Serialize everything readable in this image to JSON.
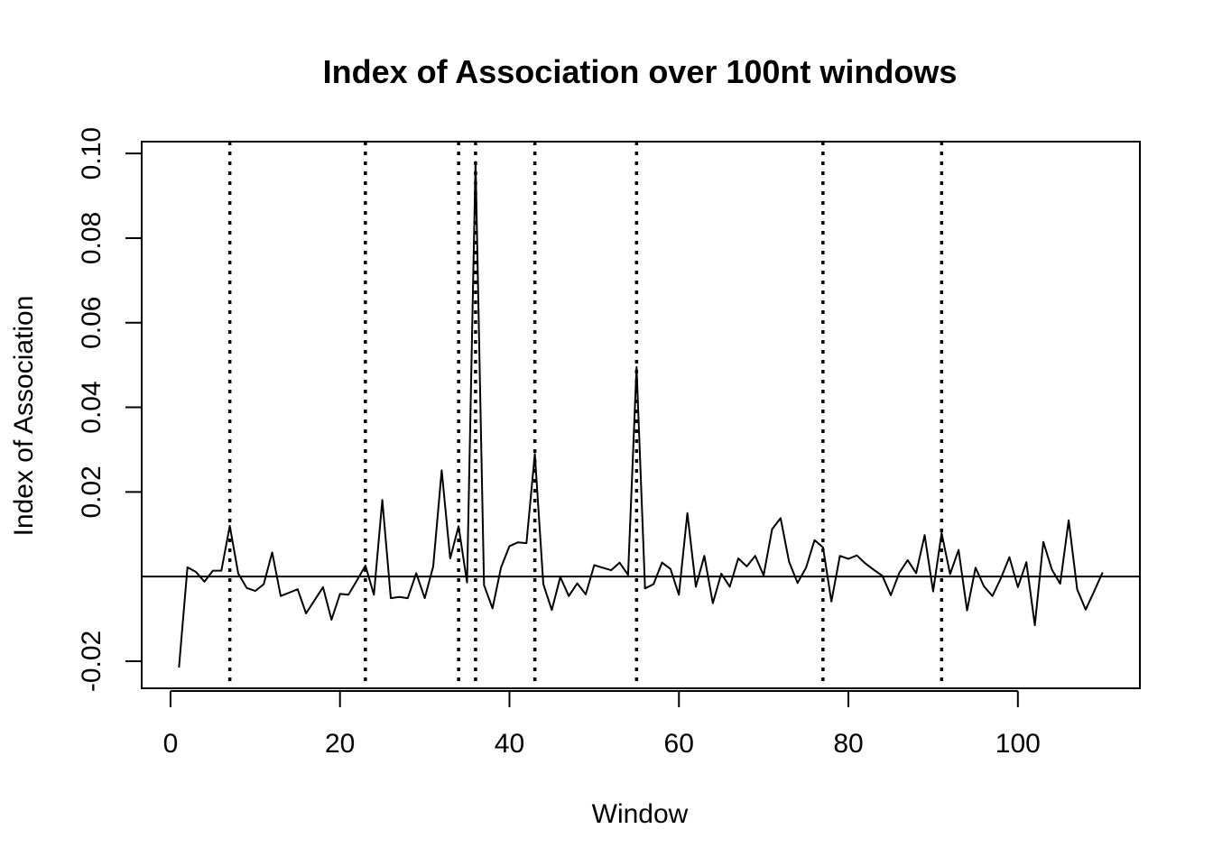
{
  "chart_data": {
    "type": "line",
    "title": "Index of Association over 100nt windows",
    "xlabel": "Window",
    "ylabel": "Index of Association",
    "xlim": [
      -3.4,
      114.4
    ],
    "ylim": [
      -0.0264,
      0.1028
    ],
    "x_ticks": [
      0,
      20,
      40,
      60,
      80,
      100
    ],
    "x_tick_labels": [
      "0",
      "20",
      "40",
      "60",
      "80",
      "100"
    ],
    "y_ticks": [
      -0.02,
      0.02,
      0.04,
      0.06,
      0.08,
      0.1
    ],
    "y_tick_labels": [
      "-0.02",
      "0.02",
      "0.04",
      "0.06",
      "0.08",
      "0.10"
    ],
    "reference_line_y": 0,
    "vertical_dotted_lines_x": [
      7,
      23,
      34,
      36,
      43,
      55,
      77,
      91
    ],
    "grid": false,
    "series": [
      {
        "name": "Index of Association",
        "x": [
          1,
          2,
          3,
          4,
          5,
          6,
          7,
          8,
          9,
          10,
          11,
          12,
          13,
          14,
          15,
          16,
          17,
          18,
          19,
          20,
          21,
          22,
          23,
          24,
          25,
          26,
          27,
          28,
          29,
          30,
          31,
          32,
          33,
          34,
          35,
          36,
          37,
          38,
          39,
          40,
          41,
          42,
          43,
          44,
          45,
          46,
          47,
          48,
          49,
          50,
          51,
          52,
          53,
          54,
          55,
          56,
          57,
          58,
          59,
          60,
          61,
          62,
          63,
          64,
          65,
          66,
          67,
          68,
          69,
          70,
          71,
          72,
          73,
          74,
          75,
          76,
          77,
          78,
          79,
          80,
          81,
          82,
          83,
          84,
          85,
          86,
          87,
          88,
          89,
          90,
          91,
          92,
          93,
          94,
          95,
          96,
          97,
          98,
          99,
          100,
          101,
          102,
          103,
          104,
          105,
          106,
          107,
          108,
          109,
          110
        ],
        "y": [
          -0.0215,
          0.0022,
          0.0011,
          -0.0012,
          0.0014,
          0.0014,
          0.012,
          0.0007,
          -0.0027,
          -0.0034,
          -0.0018,
          0.0057,
          -0.0046,
          -0.0038,
          -0.003,
          -0.0087,
          -0.0056,
          -0.0025,
          -0.0102,
          -0.0041,
          -0.0043,
          -0.0009,
          0.0026,
          -0.0043,
          0.0181,
          -0.0051,
          -0.0048,
          -0.0051,
          0.0008,
          -0.0051,
          0.0024,
          0.0251,
          0.0043,
          0.0119,
          -0.0014,
          0.098,
          -0.002,
          -0.0075,
          0.0021,
          0.0072,
          0.0081,
          0.0079,
          0.029,
          -0.0018,
          -0.0079,
          -0.0001,
          -0.0046,
          -0.0016,
          -0.0042,
          0.0027,
          0.0021,
          0.0015,
          0.0033,
          0.0004,
          0.0495,
          -0.0028,
          -0.0018,
          0.0033,
          0.0018,
          -0.0043,
          0.015,
          -0.0024,
          0.0049,
          -0.0063,
          0.0007,
          -0.0024,
          0.0043,
          0.0024,
          0.0049,
          0.0003,
          0.0112,
          0.0138,
          0.0035,
          -0.0015,
          0.0021,
          0.0086,
          0.0069,
          -0.0059,
          0.0049,
          0.0042,
          0.005,
          0.0031,
          0.0016,
          0.0002,
          -0.0044,
          0.0009,
          0.0039,
          0.0008,
          0.0098,
          -0.0035,
          0.0103,
          0.0006,
          0.0063,
          -0.008,
          0.0021,
          -0.0023,
          -0.0046,
          -0.0004,
          0.0046,
          -0.0025,
          0.0034,
          -0.0115,
          0.0082,
          0.0017,
          -0.0017,
          0.0133,
          -0.003,
          -0.0078,
          -0.0035,
          0.001
        ]
      }
    ]
  }
}
